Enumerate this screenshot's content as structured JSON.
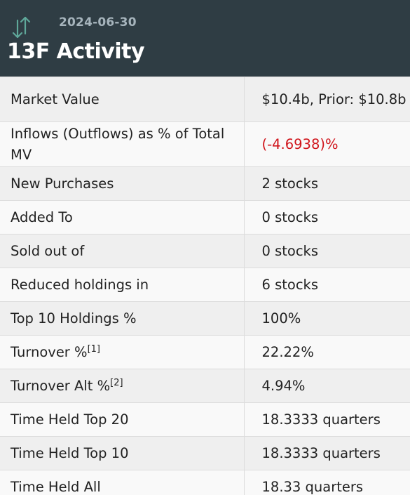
{
  "header": {
    "date": "2024-06-30",
    "title": "13F Activity",
    "icon": "up-down-arrows-icon"
  },
  "rows": [
    {
      "label": "Market Value",
      "value": "$10.4b, Prior: $10.8b"
    },
    {
      "label": "Inflows (Outflows) as % of Total MV",
      "value": "(-4.6938)%"
    },
    {
      "label": "New Purchases",
      "value": "2 stocks"
    },
    {
      "label": "Added To",
      "value": "0 stocks"
    },
    {
      "label": "Sold out of",
      "value": "0 stocks"
    },
    {
      "label": "Reduced holdings in",
      "value": "6 stocks"
    },
    {
      "label": "Top 10 Holdings %",
      "value": "100%"
    },
    {
      "label": "Turnover %",
      "footnote": "[1]",
      "value": "22.22%"
    },
    {
      "label": "Turnover Alt %",
      "footnote": "[2]",
      "value": "4.94%"
    },
    {
      "label": "Time Held Top 20",
      "value": "18.3333 quarters"
    },
    {
      "label": "Time Held Top 10",
      "value": "18.3333 quarters"
    },
    {
      "label": "Time Held All",
      "value": "18.33 quarters"
    }
  ],
  "colors": {
    "header_bg": "#2f3d44",
    "negative": "#d0141b",
    "icon": "#5fa89a"
  }
}
